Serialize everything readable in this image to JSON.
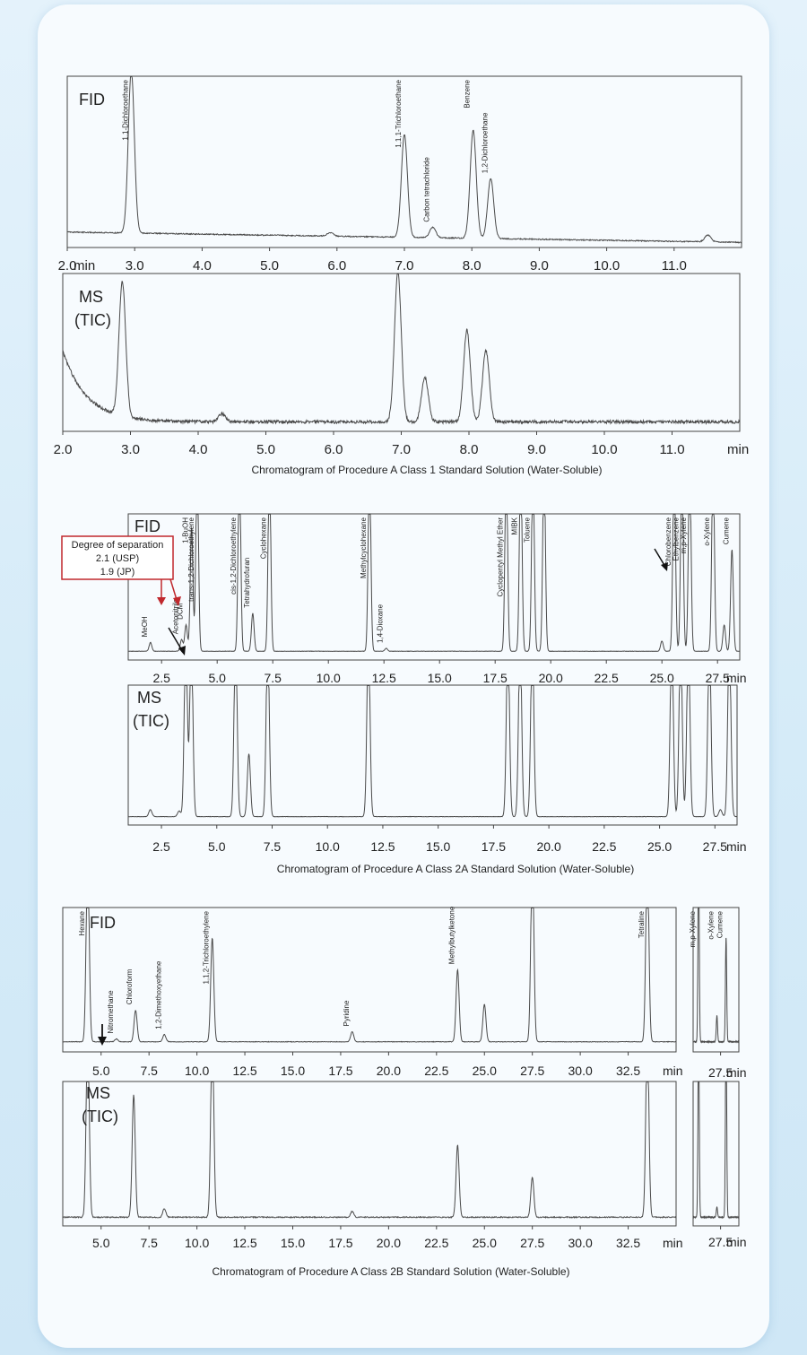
{
  "chart_data": [
    {
      "type": "line",
      "detector": "FID",
      "xunit": "min",
      "xticks": [
        "2.0",
        "3.0",
        "4.0",
        "5.0",
        "6.0",
        "7.0",
        "8.0",
        "9.0",
        "10.0",
        "11.0"
      ],
      "xlim": [
        2.0,
        12.0
      ],
      "peaks": [
        {
          "name": "1,1-Dichloroethane",
          "rt": 2.95,
          "height": 0.95
        },
        {
          "name": "",
          "rt": 5.9,
          "height": 0.02
        },
        {
          "name": "1,1,1-Trichloroethane",
          "rt": 7.0,
          "height": 0.6
        },
        {
          "name": "Carbon tetrachloride",
          "rt": 7.42,
          "height": 0.06
        },
        {
          "name": "Benzene",
          "rt": 8.02,
          "height": 0.63
        },
        {
          "name": "1,2-Dichloroethane",
          "rt": 8.28,
          "height": 0.35
        },
        {
          "name": "",
          "rt": 11.5,
          "height": 0.04
        }
      ]
    },
    {
      "type": "line",
      "detector": "MS (TIC)",
      "detector_lines": [
        "MS",
        "(TIC)"
      ],
      "xunit": "min",
      "xticks": [
        "2.0",
        "3.0",
        "4.0",
        "5.0",
        "6.0",
        "7.0",
        "8.0",
        "9.0",
        "10.0",
        "11.0"
      ],
      "xlim": [
        2.0,
        12.0
      ],
      "peaks": [
        {
          "rt": 2.88,
          "height": 0.85
        },
        {
          "rt": 4.35,
          "height": 0.05
        },
        {
          "rt": 6.95,
          "height": 0.95
        },
        {
          "rt": 7.35,
          "height": 0.28
        },
        {
          "rt": 7.97,
          "height": 0.58
        },
        {
          "rt": 8.25,
          "height": 0.45
        }
      ],
      "caption": "Chromatogram of Procedure A Class 1 Standard Solution (Water-Soluble)"
    },
    {
      "type": "line",
      "detector": "FID",
      "xunit": "min",
      "xticks": [
        "2.5",
        "5.0",
        "7.5",
        "10.0",
        "12.5",
        "15.0",
        "17.5",
        "20.0",
        "22.5",
        "25.0",
        "27.5"
      ],
      "xlim": [
        1.0,
        28.5
      ],
      "peaks": [
        {
          "name": "MeOH",
          "rt": 2.0,
          "height": 0.06
        },
        {
          "name": "Acetonitrile",
          "rt": 3.4,
          "height": 0.08
        },
        {
          "name": "DCM",
          "rt": 3.6,
          "height": 0.18
        },
        {
          "name": "1-BuOH",
          "rt": 3.85,
          "height": 0.85,
          "color": "#c0282d"
        },
        {
          "name": "trans-1,2-Dichloroethylene",
          "rt": 4.1,
          "height": 1.3
        },
        {
          "name": "cis-1,2-Dichloroethylene",
          "rt": 6.0,
          "height": 1.3
        },
        {
          "name": "Tetrahydrofuran",
          "rt": 6.6,
          "height": 0.26
        },
        {
          "name": "Cyclohexane",
          "rt": 7.35,
          "height": 1.3
        },
        {
          "name": "Methylcyclohexane",
          "rt": 11.85,
          "height": 1.3
        },
        {
          "name": "1,4-Dioxane",
          "rt": 12.6,
          "height": 0.02
        },
        {
          "name": "Cyclopentyl Methyl Ether",
          "rt": 18.0,
          "height": 1.3,
          "color": "#c0282d"
        },
        {
          "name": "MIBK",
          "rt": 18.65,
          "height": 1.3
        },
        {
          "name": "Toluene",
          "rt": 19.2,
          "height": 1.3
        },
        {
          "name": "",
          "rt": 19.7,
          "height": 1.3
        },
        {
          "name": "",
          "rt": 25.0,
          "height": 0.07
        },
        {
          "name": "Chlorobenzene",
          "rt": 25.55,
          "height": 1.3
        },
        {
          "name": "Ethylbenzene",
          "rt": 25.9,
          "height": 1.3
        },
        {
          "name": "m,p-Xylene",
          "rt": 26.25,
          "height": 1.3
        },
        {
          "name": "o-Xylene",
          "rt": 27.3,
          "height": 1.3
        },
        {
          "name": "",
          "rt": 27.8,
          "height": 0.18
        },
        {
          "name": "Cumene",
          "rt": 28.15,
          "height": 0.7
        }
      ],
      "annotation_box": {
        "title": "Degree of separation",
        "line1": "2.1 (USP)",
        "line2": "1.9 (JP)"
      }
    },
    {
      "type": "line",
      "detector": "MS (TIC)",
      "detector_lines": [
        "MS",
        "(TIC)"
      ],
      "xunit": "min",
      "xticks": [
        "2.5",
        "5.0",
        "7.5",
        "10.0",
        "12.5",
        "15.0",
        "17.5",
        "20.0",
        "22.5",
        "25.0",
        "27.5"
      ],
      "xlim": [
        1.0,
        28.5
      ],
      "peaks": [
        {
          "rt": 2.0,
          "height": 0.05
        },
        {
          "rt": 3.3,
          "height": 0.04
        },
        {
          "rt": 3.6,
          "height": 1.3
        },
        {
          "rt": 3.85,
          "height": 1.3
        },
        {
          "rt": 5.85,
          "height": 1.3
        },
        {
          "rt": 6.45,
          "height": 0.45
        },
        {
          "rt": 7.3,
          "height": 1.3
        },
        {
          "rt": 11.85,
          "height": 1.3
        },
        {
          "rt": 18.15,
          "height": 1.3
        },
        {
          "rt": 18.7,
          "height": 1.3
        },
        {
          "rt": 19.25,
          "height": 1.3
        },
        {
          "rt": 25.55,
          "height": 1.3
        },
        {
          "rt": 25.95,
          "height": 1.3
        },
        {
          "rt": 26.3,
          "height": 1.3
        },
        {
          "rt": 27.25,
          "height": 1.3
        },
        {
          "rt": 27.75,
          "height": 0.05
        },
        {
          "rt": 28.15,
          "height": 1.3
        }
      ],
      "caption": "Chromatogram of Procedure A Class 2A Standard Solution (Water-Soluble)"
    },
    {
      "type": "line",
      "detector": "FID",
      "xunit": "min",
      "xticks": [
        "5.0",
        "7.5",
        "10.0",
        "12.5",
        "15.0",
        "17.5",
        "20.0",
        "22.5",
        "25.0",
        "27.5",
        "30.0",
        "32.5"
      ],
      "xlim": [
        3.0,
        35.0
      ],
      "peaks": [
        {
          "name": "Hexane",
          "rt": 4.3,
          "height": 1.3
        },
        {
          "name": "Nitromethane",
          "rt": 5.8,
          "height": 0.02
        },
        {
          "name": "Chloroform",
          "rt": 6.8,
          "height": 0.22
        },
        {
          "name": "1,2-Dimethoxyethane",
          "rt": 8.3,
          "height": 0.05
        },
        {
          "name": "1,1,2-Trichloroethylene",
          "rt": 10.8,
          "height": 0.72
        },
        {
          "name": "Pyridine",
          "rt": 18.1,
          "height": 0.07
        },
        {
          "name": "Methylbutylketone",
          "rt": 23.6,
          "height": 0.5
        },
        {
          "name": "",
          "rt": 25.0,
          "height": 0.26
        },
        {
          "name": "",
          "rt": 27.5,
          "height": 1.3
        },
        {
          "name": "Tetraline",
          "rt": 33.5,
          "height": 1.3
        }
      ]
    },
    {
      "type": "line",
      "detector": "FID",
      "xunit": "min",
      "xticks": [
        "27.5"
      ],
      "xlim": [
        26.0,
        28.5
      ],
      "peaks": [
        {
          "name": "m,p-Xylene",
          "rt": 26.3,
          "height": 1.3
        },
        {
          "name": "o-Xylene",
          "rt": 27.3,
          "height": 0.18
        },
        {
          "name": "Cumene",
          "rt": 27.8,
          "height": 0.72
        }
      ]
    },
    {
      "type": "line",
      "detector": "MS (TIC)",
      "detector_lines": [
        "MS",
        "(TIC)"
      ],
      "xunit": "min",
      "xticks": [
        "5.0",
        "7.5",
        "10.0",
        "12.5",
        "15.0",
        "17.5",
        "20.0",
        "22.5",
        "25.0",
        "27.5",
        "30.0",
        "32.5"
      ],
      "xlim": [
        3.0,
        35.0
      ],
      "peaks": [
        {
          "rt": 4.3,
          "height": 1.3
        },
        {
          "rt": 6.7,
          "height": 0.85
        },
        {
          "rt": 8.3,
          "height": 0.06
        },
        {
          "rt": 10.8,
          "height": 1.3
        },
        {
          "rt": 18.1,
          "height": 0.04
        },
        {
          "rt": 23.6,
          "height": 0.5
        },
        {
          "rt": 27.5,
          "height": 0.28
        },
        {
          "rt": 33.5,
          "height": 1.3
        }
      ],
      "caption": "Chromatogram of Procedure A Class 2B Standard Solution (Water-Soluble)"
    },
    {
      "type": "line",
      "detector": "MS (TIC)",
      "xunit": "min",
      "xticks": [
        "27.5"
      ],
      "xlim": [
        26.0,
        28.5
      ],
      "peaks": [
        {
          "rt": 26.3,
          "height": 1.3
        },
        {
          "rt": 27.3,
          "height": 0.07
        },
        {
          "rt": 27.8,
          "height": 1.3
        }
      ]
    }
  ]
}
